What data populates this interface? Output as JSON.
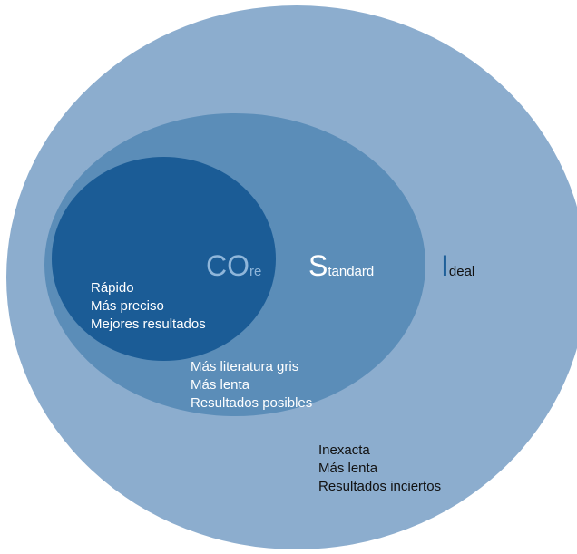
{
  "colors": {
    "ideal": "#8cadce",
    "standard": "#5b8db8",
    "core": "#1b5c96",
    "core_label": "#8fb6da",
    "ideal_initial": "#1e5f99"
  },
  "core": {
    "title_initial": "CO",
    "title_rest": "re",
    "lines": [
      "Rápido",
      "Más preciso",
      "Mejores resultados"
    ]
  },
  "standard": {
    "title_initial": "S",
    "title_rest": "tandard",
    "lines": [
      "Más literatura gris",
      "Más lenta",
      "Resultados posibles"
    ]
  },
  "ideal": {
    "title_initial": "I",
    "title_rest": "deal",
    "lines": [
      "Inexacta",
      "Más lenta",
      "Resultados inciertos"
    ]
  }
}
